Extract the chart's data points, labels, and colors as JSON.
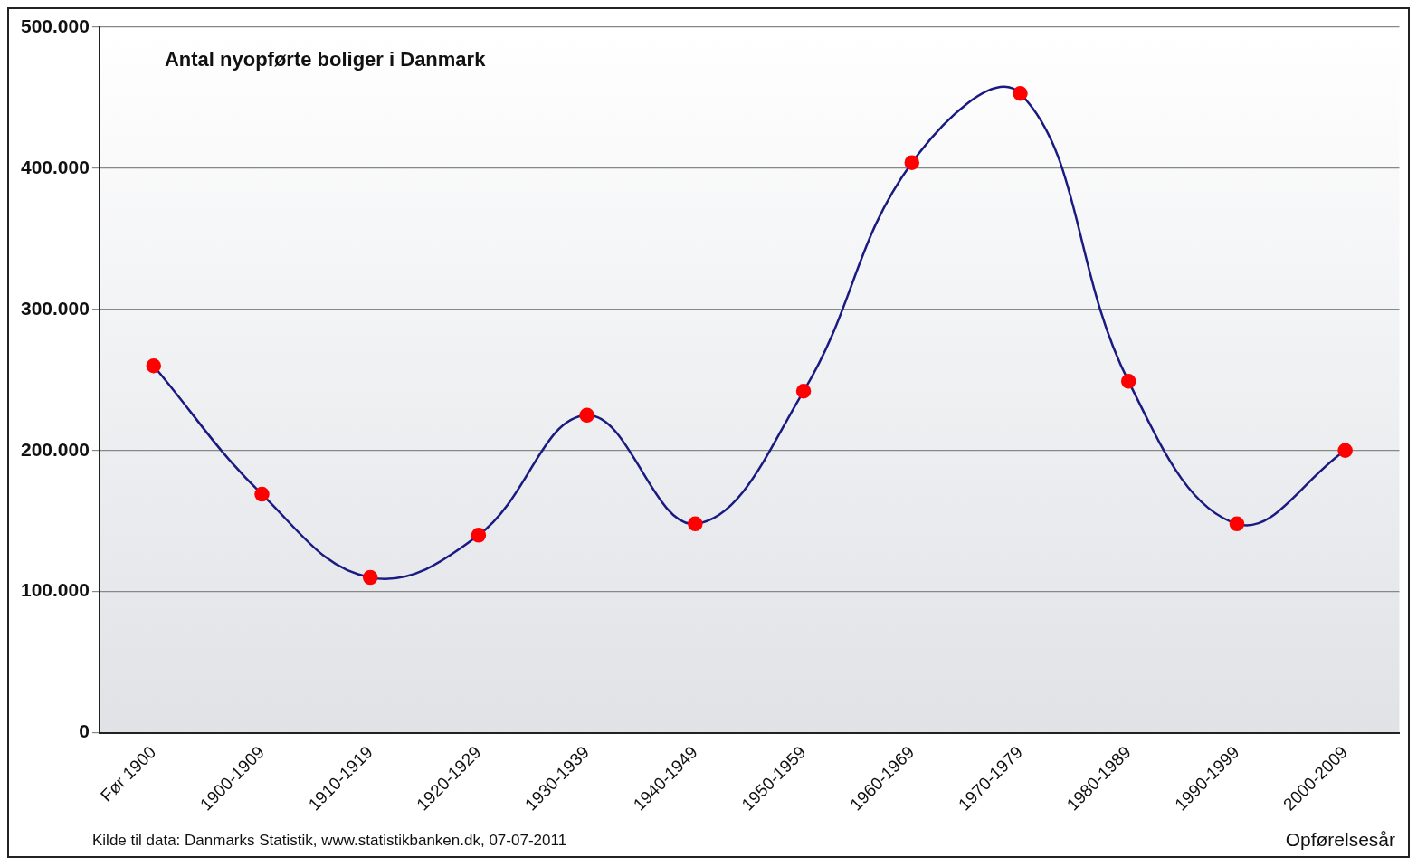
{
  "chart_data": {
    "type": "line",
    "title": "Antal nyopførte boliger i Danmark",
    "xlabel": "Opførelsesår",
    "categories": [
      "Før 1900",
      "1900-1909",
      "1910-1919",
      "1920-1929",
      "1930-1939",
      "1940-1949",
      "1950-1959",
      "1960-1969",
      "1970-1979",
      "1980-1989",
      "1990-1999",
      "2000-2009"
    ],
    "series": [
      {
        "color": "#1a1a80",
        "colors": [
          "#ff0000",
          "#ff0000",
          "#ff0000",
          "#ff0000",
          "#ff0000",
          "#ff0000",
          "#ff0000",
          "#ff0000",
          "#ff0000",
          "#ff0000",
          "#ff0000",
          "#ff0000"
        ],
        "values": [
          260000,
          169000,
          110000,
          140000,
          225000,
          148000,
          242000,
          404000,
          453000,
          249000,
          148000,
          200000
        ]
      }
    ],
    "marker": "circle",
    "ylim": [
      0,
      500000
    ],
    "yticks": [
      {
        "value": 0,
        "label": "0"
      },
      {
        "value": 100000,
        "label": "100.000"
      },
      {
        "value": 200000,
        "label": "200.000"
      },
      {
        "value": 300000,
        "label": "300.000"
      },
      {
        "value": 400000,
        "label": "400.000"
      },
      {
        "value": 500000,
        "label": "500.000"
      }
    ],
    "grid": "y",
    "legend": false,
    "annotations": [
      "Kilde til data: Danmarks Statistik, www.statistikbanken.dk, 07-07-2011"
    ]
  }
}
